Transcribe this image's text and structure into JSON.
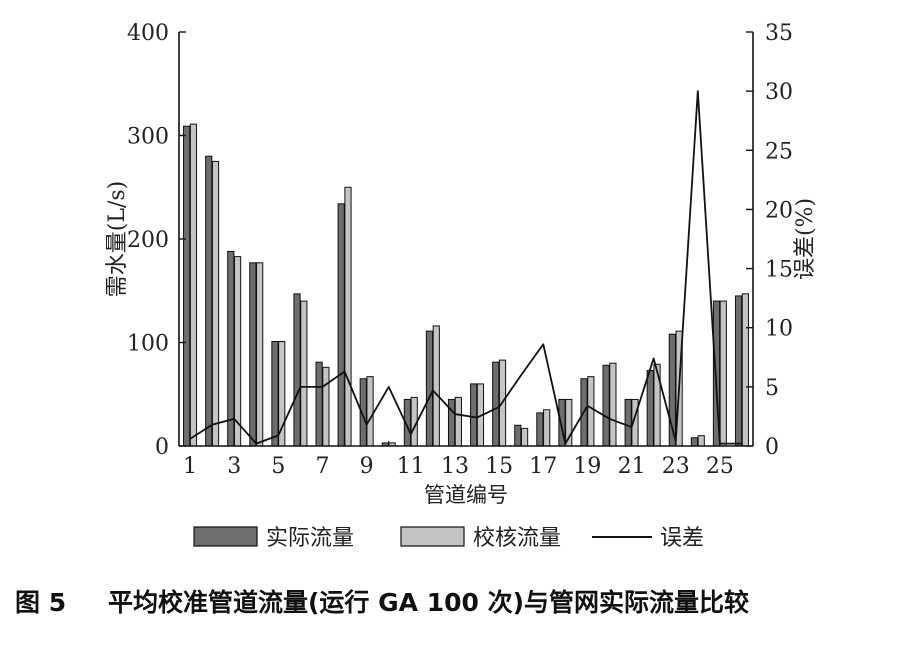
{
  "chart_data": {
    "type": "bar",
    "categories": [
      "1",
      "2",
      "3",
      "4",
      "5",
      "6",
      "7",
      "8",
      "9",
      "10",
      "11",
      "12",
      "13",
      "14",
      "15",
      "16",
      "17",
      "18",
      "19",
      "20",
      "21",
      "22",
      "23",
      "24",
      "25",
      "26"
    ],
    "x_tick_labels": [
      "1",
      "3",
      "5",
      "7",
      "9",
      "11",
      "13",
      "15",
      "17",
      "19",
      "21",
      "23",
      "25"
    ],
    "xlabel": "管道编号",
    "ylabel_left": "需水量(L/s)",
    "ylabel_right": "误差(%)",
    "ylim_left": [
      0,
      400
    ],
    "ylim_right": [
      0,
      35
    ],
    "yticks_left": [
      "0",
      "100",
      "200",
      "300",
      "400"
    ],
    "yticks_right": [
      "0",
      "5",
      "10",
      "15",
      "20",
      "25",
      "30",
      "35"
    ],
    "series": [
      {
        "name": "实际流量",
        "type": "bar",
        "color": "#6e6e6e",
        "values": [
          309,
          280,
          188,
          177,
          101,
          147,
          81,
          234,
          65,
          3,
          45,
          111,
          45,
          60,
          81,
          20,
          32,
          45,
          65,
          78,
          45,
          73,
          108,
          8,
          140,
          145
        ]
      },
      {
        "name": "校核流量",
        "type": "bar",
        "color": "#c4c4c4",
        "values": [
          311,
          275,
          183,
          177,
          101,
          140,
          76,
          250,
          67,
          3,
          47,
          116,
          47,
          60,
          83,
          17,
          35,
          45,
          67,
          80,
          45,
          79,
          111,
          10,
          140,
          147
        ]
      },
      {
        "name": "误差",
        "type": "line",
        "color": "#111111",
        "values": [
          0.6,
          1.8,
          2.3,
          0.2,
          0.9,
          5.0,
          5.0,
          6.3,
          1.8,
          5.0,
          1.0,
          4.7,
          2.7,
          2.4,
          3.3,
          6.0,
          8.6,
          0.2,
          3.4,
          2.3,
          1.6,
          7.4,
          0.4,
          30.0,
          0.2,
          0.2
        ]
      }
    ],
    "legend": [
      "实际流量",
      "校核流量",
      "误差"
    ],
    "legend_position": "bottom",
    "grid": false
  },
  "caption": {
    "label": "图 5",
    "text": "平均校准管道流量(运行 GA 100 次)与管网实际流量比较"
  }
}
